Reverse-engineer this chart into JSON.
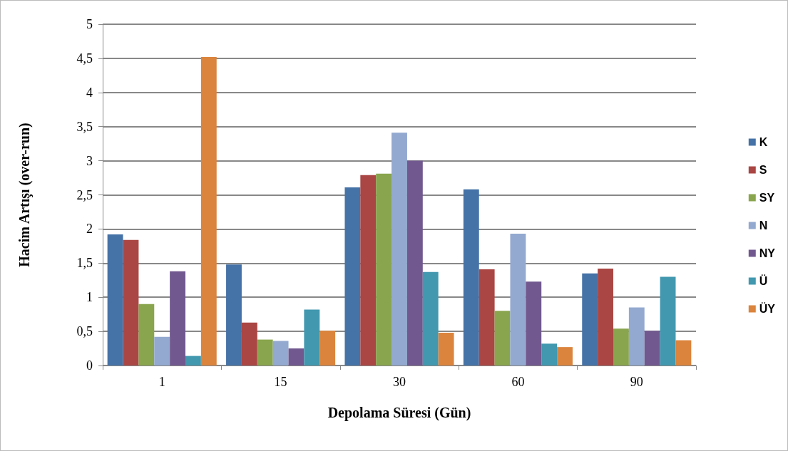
{
  "chart_data": {
    "type": "bar",
    "xlabel": "Depolama Süresi (Gün)",
    "ylabel": "Hacim Artışı (over-run)",
    "categories": [
      "1",
      "15",
      "30",
      "60",
      "90"
    ],
    "series": [
      {
        "name": "K",
        "color": "#4572a7",
        "values": [
          1.92,
          1.48,
          2.61,
          2.58,
          1.35
        ]
      },
      {
        "name": "S",
        "color": "#aa4643",
        "values": [
          1.84,
          0.63,
          2.79,
          1.41,
          1.42
        ]
      },
      {
        "name": "SY",
        "color": "#89a54e",
        "values": [
          0.9,
          0.38,
          2.81,
          0.8,
          0.54
        ]
      },
      {
        "name": "N",
        "color": "#93a9cf",
        "values": [
          0.42,
          0.36,
          3.41,
          1.93,
          0.85
        ]
      },
      {
        "name": "NY",
        "color": "#71588f",
        "values": [
          1.38,
          0.25,
          3.0,
          1.23,
          0.51
        ]
      },
      {
        "name": "Ü",
        "color": "#4198af",
        "values": [
          0.14,
          0.82,
          1.37,
          0.32,
          1.3
        ]
      },
      {
        "name": "ÜY",
        "color": "#db843d",
        "values": [
          4.52,
          0.51,
          0.48,
          0.27,
          0.37
        ]
      }
    ],
    "ylim": [
      0,
      5
    ],
    "yticks": [
      0,
      {
        "value": 0.5,
        "label": "0,5"
      },
      1,
      {
        "value": 1.5,
        "label": "1,5"
      },
      2,
      {
        "value": 2.5,
        "label": "2,5"
      },
      3,
      {
        "value": 3.5,
        "label": "3,5"
      },
      4,
      {
        "value": 4.5,
        "label": "4,5"
      },
      5
    ],
    "grid": "y",
    "legend": "right"
  }
}
